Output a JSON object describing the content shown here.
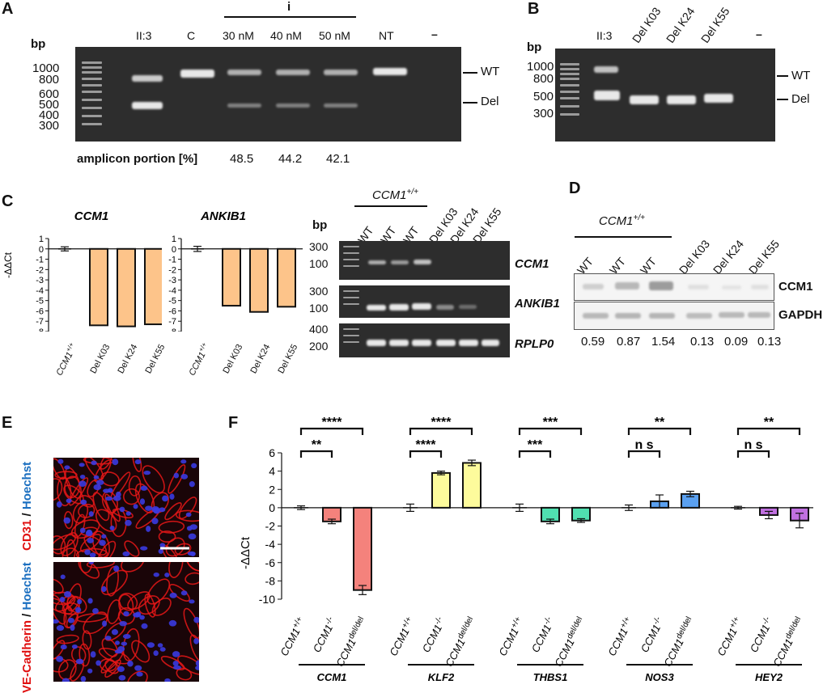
{
  "panels": {
    "A": {
      "label": "A",
      "bp": "bp",
      "lanes": [
        "II:3",
        "C",
        "30 nM",
        "40 nM",
        "50 nM",
        "NT",
        "–"
      ],
      "group_label": "i",
      "markers": [
        "1000",
        "800",
        "600",
        "500",
        "400",
        "300"
      ],
      "right_labels": [
        "WT",
        "Del"
      ],
      "amplicon_label": "amplicon portion [%]",
      "amplicon_values": [
        "48.5",
        "44.2",
        "42.1"
      ]
    },
    "B": {
      "label": "B",
      "bp": "bp",
      "lanes": [
        "II:3",
        "Del K03",
        "Del K24",
        "Del K55",
        "–"
      ],
      "markers": [
        "1000",
        "800",
        "500",
        "300"
      ],
      "right_labels": [
        "WT",
        "Del"
      ]
    },
    "C": {
      "label": "C",
      "chart_titles": [
        "CCM1",
        "ANKIB1"
      ],
      "ylabel": "-ΔΔCt",
      "gel_group_label": "CCM1+/+",
      "gel_lanes": [
        "WT",
        "WT",
        "WT",
        "Del K03",
        "Del K24",
        "Del K55"
      ],
      "gel_bp": "bp",
      "gel_rows": [
        {
          "name": "CCM1",
          "markers": [
            "300",
            "100"
          ]
        },
        {
          "name": "ANKIB1",
          "markers": [
            "300",
            "100"
          ]
        },
        {
          "name": "RPLP0",
          "markers": [
            "400",
            "200"
          ]
        }
      ]
    },
    "D": {
      "label": "D",
      "group_label": "CCM1+/+",
      "lanes": [
        "WT",
        "WT",
        "WT",
        "Del K03",
        "Del K24",
        "Del K55"
      ],
      "rows": [
        "CCM1",
        "GAPDH"
      ],
      "values": [
        "0.59",
        "0.87",
        "1.54",
        "0.13",
        "0.09",
        "0.13"
      ]
    },
    "E": {
      "label": "E",
      "top_stain_a": "CD31",
      "top_stain_sep": " / ",
      "top_stain_b": "Hoechst",
      "bottom_stain_a": "VE-Cadherin",
      "bottom_stain_sep": " / ",
      "bottom_stain_b": "Hoechst"
    },
    "F": {
      "label": "F",
      "ylabel": "-ΔΔCt",
      "genes": [
        "CCM1",
        "KLF2",
        "THBS1",
        "NOS3",
        "HEY2"
      ]
    }
  },
  "colors": {
    "orange": "#fdc48a",
    "ccm1": "#f4827c",
    "klf2": "#fdfb9c",
    "thbs1": "#50e0b0",
    "nos3": "#5aa0f0",
    "hey2": "#c070e0",
    "red_stain": "#e01010",
    "blue_stain": "#1b6fc0"
  },
  "chart_data": [
    {
      "type": "bar",
      "title": "CCM1",
      "categories": [
        "CCM1+/+",
        "Del K03",
        "Del K24",
        "Del K55"
      ],
      "values": [
        0,
        -7.4,
        -7.5,
        -7.3
      ],
      "errors": [
        0.2,
        0,
        0,
        0
      ],
      "ylabel": "-ΔΔCt",
      "ylim": [
        -8,
        1
      ],
      "yticks": [
        "1",
        "0",
        "-1",
        "-2",
        "-3",
        "-4",
        "-5",
        "-6",
        "-7",
        "-8"
      ]
    },
    {
      "type": "bar",
      "title": "ANKIB1",
      "categories": [
        "CCM1+/+",
        "Del K03",
        "Del K24",
        "Del K55"
      ],
      "values": [
        0,
        -5.5,
        -6.1,
        -5.6
      ],
      "errors": [
        0.25,
        0,
        0,
        0
      ],
      "ylim": [
        -8,
        1
      ],
      "yticks": [
        "1",
        "0",
        "-1",
        "-2",
        "-3",
        "-4",
        "-5",
        "-6",
        "-7",
        "-8"
      ]
    },
    {
      "type": "bar",
      "ylabel": "-ΔΔCt",
      "ylim": [
        -10,
        6
      ],
      "yticks": [
        "6",
        "4",
        "2",
        "0",
        "-2",
        "-4",
        "-6",
        "-8",
        "-10"
      ],
      "categories": [
        "CCM1+/+",
        "CCM1-/-",
        "CCM1del/del"
      ],
      "series": [
        {
          "name": "CCM1",
          "values": [
            0,
            -1.5,
            -9.0
          ],
          "errors": [
            0.2,
            0.25,
            0.5
          ],
          "significance": [
            "**",
            "****"
          ]
        },
        {
          "name": "KLF2",
          "values": [
            0,
            3.8,
            4.9
          ],
          "errors": [
            0.4,
            0.2,
            0.3
          ],
          "significance": [
            "****",
            "****"
          ]
        },
        {
          "name": "THBS1",
          "values": [
            0,
            -1.5,
            -1.4
          ],
          "errors": [
            0.4,
            0.25,
            0.2
          ],
          "significance": [
            "***",
            "***"
          ]
        },
        {
          "name": "NOS3",
          "values": [
            0,
            0.7,
            1.5
          ],
          "errors": [
            0.3,
            0.7,
            0.3
          ],
          "significance": [
            "n s",
            "**"
          ]
        },
        {
          "name": "HEY2",
          "values": [
            0,
            -0.8,
            -1.4
          ],
          "errors": [
            0.15,
            0.4,
            0.8
          ],
          "significance": [
            "n s",
            "**"
          ]
        }
      ]
    }
  ]
}
